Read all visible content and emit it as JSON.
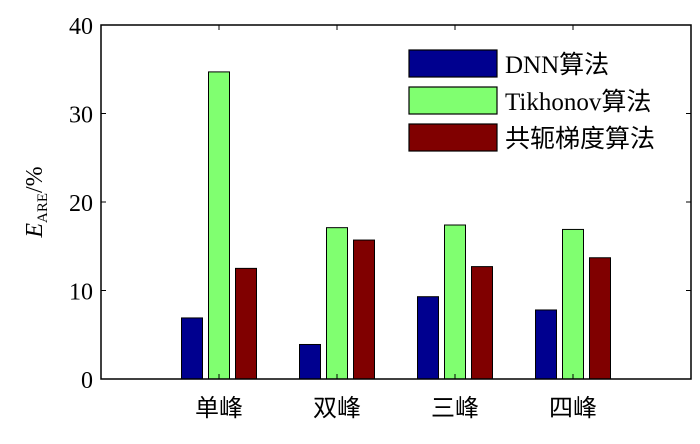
{
  "chart_data": {
    "type": "bar",
    "title": "",
    "xlabel": "",
    "ylabel": {
      "main": "E",
      "subscript": "ARE",
      "suffix": "/%"
    },
    "categories": [
      "单峰",
      "双峰",
      "三峰",
      "四峰"
    ],
    "ylim": [
      0,
      40
    ],
    "yticks": [
      0,
      10,
      20,
      30,
      40
    ],
    "xlim": [
      0,
      5
    ],
    "grid": false,
    "legend_position": "top-right",
    "series": [
      {
        "name": "DNN算法",
        "color": "#00008f",
        "values": [
          6.9,
          3.9,
          9.3,
          7.8
        ]
      },
      {
        "name": "Tikhonov算法",
        "color": "#80ff70",
        "values": [
          34.7,
          17.1,
          17.4,
          16.9
        ]
      },
      {
        "name": "共轭梯度算法",
        "color": "#800000",
        "values": [
          12.5,
          15.7,
          12.7,
          13.7
        ]
      }
    ]
  }
}
